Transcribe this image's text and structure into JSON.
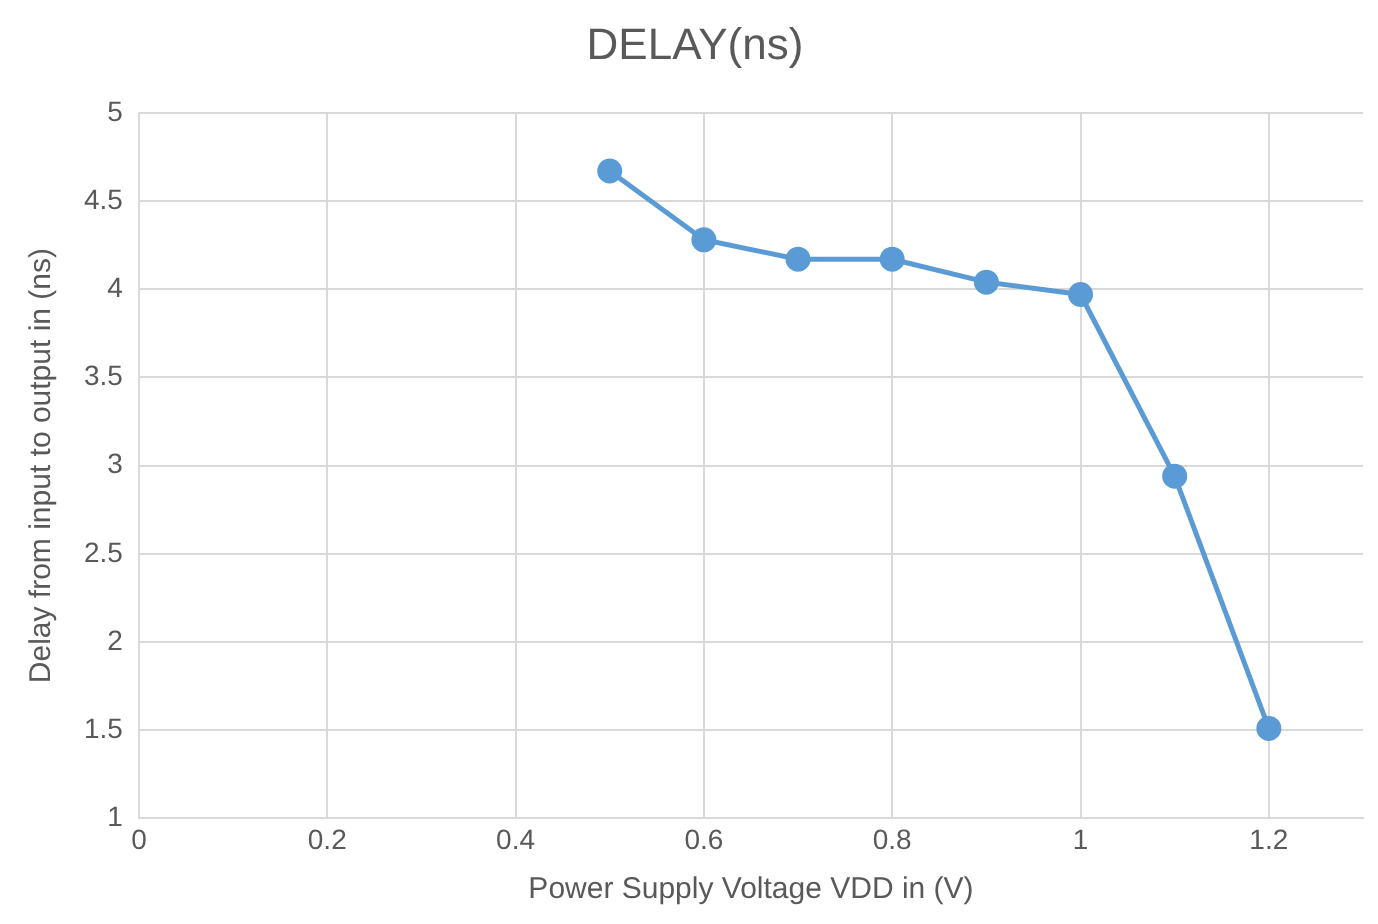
{
  "chart_data": {
    "type": "line",
    "title": "DELAY(ns)",
    "xlabel": "Power Supply Voltage VDD in (V)",
    "ylabel": "Delay from input to output in (ns)",
    "x": [
      0.5,
      0.6,
      0.7,
      0.8,
      0.9,
      1.0,
      1.1,
      1.2
    ],
    "series": [
      {
        "color": "#5b9bd5",
        "values": [
          4.67,
          4.28,
          4.17,
          4.17,
          4.04,
          3.97,
          2.94,
          1.51
        ]
      }
    ],
    "xlim": [
      0,
      1.3
    ],
    "xticks": [
      0,
      0.2,
      0.4,
      0.6,
      0.8,
      1,
      1.2
    ],
    "ylim": [
      1,
      5
    ],
    "yticks": [
      1,
      1.5,
      2,
      2.5,
      3,
      3.5,
      4,
      4.5,
      5
    ],
    "grid": true,
    "legend": false,
    "marker": "circle",
    "line_style": "solid"
  }
}
